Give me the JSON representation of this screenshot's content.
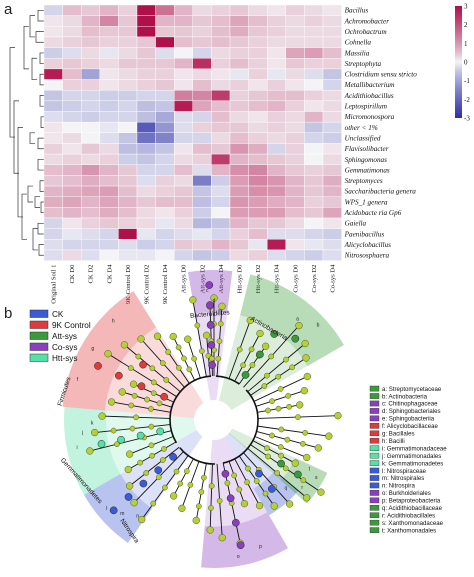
{
  "panel_a": "a",
  "panel_b": "b",
  "chart_data": [
    {
      "type": "heatmap",
      "title": "",
      "rows": [
        "Bacillus",
        "Achromobacter",
        "Ochrobactrum",
        "Cohnella",
        "Massilia",
        "Streptophyta",
        "Clostridium sensu stricto",
        "Metallibacterium",
        "Acidithiobacillus",
        "Leptospirillum",
        "Micromonospora",
        "other < 1%",
        "Unclassified",
        "Flavisolibacter",
        "Sphingomonas",
        "Gemmatimonas",
        "Streptomyces",
        "Saccharibacteria genera",
        "WPS_1 genera",
        "Acidobacte ria Gp6",
        "Gaiella",
        "Paenibacillus",
        "Alicyclobacillus",
        "Nitrososphaera"
      ],
      "columns": [
        "Original Soil 1",
        "CK D0",
        "CK D2",
        "CK D4",
        "9K Control D0",
        "9K Control D2",
        "9K Control D4",
        "Att-sys D0",
        "Att-sys D2",
        "Att-sys D4",
        "Htt-sys D0",
        "Htt-sys D2",
        "Htt-sys D4",
        "Co-sys D0",
        "Co-sys D2",
        "Co-sys D4"
      ],
      "values": [
        [
          -0.3,
          0.5,
          0.4,
          0.6,
          0.3,
          3.2,
          1.5,
          0.6,
          0.2,
          0.3,
          0.4,
          0.2,
          0.1,
          0.3,
          0.2,
          0.1
        ],
        [
          0.1,
          0.2,
          0.6,
          1.2,
          0.4,
          3.0,
          0.6,
          0.6,
          0.4,
          0.5,
          0.8,
          0.5,
          0.3,
          0.2,
          0.3,
          0.2
        ],
        [
          0.1,
          0.2,
          0.5,
          0.4,
          0.4,
          3.0,
          0.4,
          0.4,
          0.3,
          0.5,
          0.7,
          0.4,
          0.3,
          0.2,
          0.2,
          0.2
        ],
        [
          0.2,
          0.3,
          0.4,
          0.3,
          0.3,
          0.4,
          3.2,
          0.5,
          0.4,
          0.5,
          0.4,
          0.3,
          0.2,
          0.2,
          0.2,
          0.2
        ],
        [
          -0.4,
          -0.2,
          0.2,
          -0.1,
          0.2,
          0.4,
          -0.2,
          0.0,
          -0.3,
          0.2,
          0.3,
          0.3,
          0.1,
          0.8,
          0.9,
          0.5
        ],
        [
          0.3,
          0.4,
          0.3,
          0.2,
          0.4,
          0.4,
          0.4,
          0.6,
          2.5,
          0.3,
          0.5,
          0.3,
          0.1,
          0.4,
          0.3,
          0.3
        ],
        [
          2.8,
          0.5,
          -1.0,
          0.1,
          0.2,
          0.3,
          0.3,
          0.1,
          0.2,
          0.1,
          -0.1,
          0.3,
          -0.1,
          0.2,
          -0.2,
          -0.5
        ],
        [
          0.0,
          0.3,
          0.3,
          0.1,
          0.2,
          0.3,
          0.4,
          0.1,
          0.5,
          0.2,
          0.3,
          0.1,
          0.3,
          0.1,
          0.0,
          -0.3
        ],
        [
          -0.5,
          -0.3,
          -0.3,
          -0.4,
          -0.4,
          -0.3,
          -0.3,
          1.3,
          1.2,
          2.3,
          0.3,
          0.4,
          0.5,
          0.5,
          0.3,
          0.2
        ],
        [
          -0.5,
          -0.4,
          -0.3,
          -0.4,
          -0.3,
          -0.6,
          -0.5,
          2.8,
          0.8,
          0.5,
          0.4,
          0.5,
          0.6,
          0.3,
          0.1,
          0.2
        ],
        [
          -0.2,
          -0.3,
          -0.4,
          -0.3,
          -0.3,
          -0.6,
          -0.9,
          -0.2,
          -0.3,
          0.5,
          0.2,
          0.1,
          0.3,
          0.2,
          0.6,
          0.2
        ],
        [
          0.1,
          0.0,
          0.0,
          -0.1,
          0.0,
          -2.2,
          -1.2,
          -0.2,
          0.3,
          0.4,
          0.4,
          0.2,
          0.3,
          0.2,
          -0.5,
          -0.3
        ],
        [
          0.1,
          0.2,
          0.0,
          -0.2,
          -0.5,
          -1.8,
          -1.5,
          -0.3,
          -0.3,
          0.2,
          0.5,
          0.3,
          0.2,
          0.3,
          -0.3,
          -0.4
        ],
        [
          0.3,
          0.1,
          0.4,
          0.2,
          -0.6,
          -0.7,
          -0.5,
          0.1,
          0.5,
          0.4,
          1.0,
          0.7,
          -0.3,
          0.3,
          0.0,
          0.1
        ],
        [
          0.2,
          0.3,
          0.2,
          0.3,
          -0.4,
          -0.5,
          -0.3,
          0.2,
          0.3,
          2.3,
          0.6,
          0.5,
          0.4,
          0.3,
          0.0,
          0.2
        ],
        [
          0.5,
          0.6,
          1.0,
          0.6,
          0.4,
          -0.3,
          -0.3,
          0.5,
          -0.2,
          0.6,
          1.1,
          1.2,
          0.6,
          0.4,
          0.3,
          0.4
        ],
        [
          0.4,
          0.5,
          0.7,
          0.5,
          0.4,
          -0.2,
          0.3,
          0.2,
          -1.6,
          -0.4,
          0.9,
          1.2,
          1.0,
          0.6,
          0.4,
          0.7
        ],
        [
          0.6,
          0.7,
          0.8,
          0.9,
          0.5,
          0.2,
          0.3,
          0.4,
          -0.5,
          -0.2,
          0.9,
          1.1,
          1.0,
          0.6,
          0.4,
          0.6
        ],
        [
          0.7,
          0.8,
          0.6,
          0.8,
          0.6,
          0.4,
          0.5,
          0.5,
          -0.6,
          -0.3,
          1.0,
          0.9,
          0.7,
          0.6,
          0.3,
          0.4
        ],
        [
          0.5,
          0.6,
          0.5,
          0.7,
          0.5,
          0.2,
          0.1,
          0.3,
          -0.4,
          0.0,
          0.9,
          0.9,
          0.9,
          0.5,
          0.4,
          0.8
        ],
        [
          -0.3,
          0.1,
          0.3,
          0.4,
          0.3,
          0.2,
          -0.1,
          0.2,
          -0.7,
          -0.5,
          0.6,
          0.4,
          0.4,
          0.2,
          0.0,
          0.1
        ],
        [
          -0.3,
          -0.1,
          -0.2,
          -0.3,
          3.0,
          -0.1,
          -0.3,
          -0.2,
          -0.1,
          -0.3,
          0.3,
          0.5,
          -0.2,
          -0.2,
          -0.3,
          -0.4
        ],
        [
          -0.2,
          -0.3,
          -0.3,
          -0.3,
          -0.2,
          -0.4,
          -0.3,
          0.4,
          0.3,
          0.6,
          0.4,
          -0.1,
          2.8,
          0.1,
          -0.1,
          -0.2
        ],
        [
          -0.2,
          0.2,
          -0.2,
          0.0,
          -0.1,
          -0.1,
          0.0,
          -0.3,
          -0.5,
          -0.4,
          0.2,
          0.3,
          -0.2,
          -0.3,
          -0.4,
          -0.2
        ]
      ],
      "color_scale": {
        "min": -3,
        "max": 3,
        "low": "#2c2fa8",
        "mid": "#f4f4f6",
        "high": "#b0104a"
      },
      "colorbar_ticks": [
        3,
        2,
        1,
        0,
        -1,
        -2,
        -3
      ],
      "tick_labels": [
        "3",
        "2",
        "1",
        "0",
        "-1",
        "-2",
        "-3"
      ]
    },
    {
      "type": "cladogram",
      "legend_groups": [
        {
          "label": "CK",
          "color": "#3b5bd6"
        },
        {
          "label": "9K  Control",
          "color": "#e23a3a"
        },
        {
          "label": "Att-sys",
          "color": "#3b9a3b"
        },
        {
          "label": "Co-sys",
          "color": "#8a3ec0"
        },
        {
          "label": "Htt-sys",
          "color": "#55e0a6"
        }
      ],
      "taxa": [
        {
          "key": "a",
          "name": "a: Streptomycetaceae",
          "group": "Att-sys"
        },
        {
          "key": "b",
          "name": "b: Actinobacteria",
          "group": "Att-sys"
        },
        {
          "key": "c",
          "name": "c: Chitinophagaceae",
          "group": "Co-sys"
        },
        {
          "key": "d",
          "name": "d: Sphingobacteriales",
          "group": "Co-sys"
        },
        {
          "key": "e",
          "name": "e: Sphingobacteriia",
          "group": "Co-sys"
        },
        {
          "key": "f",
          "name": "f: Alicyclobacillaceae",
          "group": "9K  Control"
        },
        {
          "key": "g",
          "name": "g: Bacillales",
          "group": "9K  Control"
        },
        {
          "key": "h",
          "name": "h: Bacilli",
          "group": "9K  Control"
        },
        {
          "key": "i",
          "name": "i: Gemmatimonadaceae",
          "group": "Htt-sys"
        },
        {
          "key": "j",
          "name": "j: Gemmatimonadales",
          "group": "Htt-sys"
        },
        {
          "key": "k",
          "name": "k: Gemmatimonadetes",
          "group": "Htt-sys"
        },
        {
          "key": "l",
          "name": "l: Nitrospiraceae",
          "group": "CK"
        },
        {
          "key": "m",
          "name": "m: Nitrospirales",
          "group": "CK"
        },
        {
          "key": "n",
          "name": "n: Nitrospira",
          "group": "CK"
        },
        {
          "key": "o",
          "name": "o: Burkholderiales",
          "group": "Co-sys"
        },
        {
          "key": "p",
          "name": "p: Betaproteobacteria",
          "group": "Co-sys"
        },
        {
          "key": "q",
          "name": "q: Acidithiobacillaceae",
          "group": "Att-sys"
        },
        {
          "key": "r",
          "name": "r: Acidithiobacillales",
          "group": "Att-sys"
        },
        {
          "key": "s",
          "name": "s: Xanthomonadaceae",
          "group": "Att-sys"
        },
        {
          "key": "t",
          "name": "t: Xanthomonadales",
          "group": "Att-sys"
        }
      ],
      "clade_labels": {
        "bacteroidetes": "Bacteroidetes",
        "actinobacteria": "Actinobacteria",
        "firmicutes": "Firmicutes",
        "gemmatimonadetes": "Gemmatimonadetes",
        "nitrospira": "Nitrospira"
      }
    }
  ]
}
